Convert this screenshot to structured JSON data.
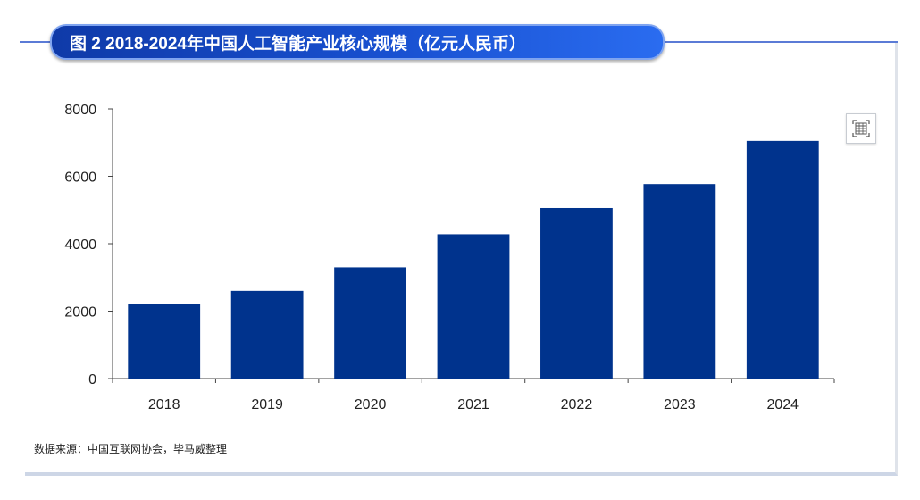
{
  "header": {
    "title": "图 2 2018-2024年中国人工智能产业核心规模（亿元人民币）"
  },
  "source_note": "数据来源：中国互联网协会，毕马威整理",
  "toolbar": {
    "icon": "table-icon"
  },
  "colors": {
    "bar": "#00338d",
    "banner": "#1a4fd0",
    "axis": "#444444"
  },
  "chart_data": {
    "type": "bar",
    "title": "2018-2024年中国人工智能产业核心规模（亿元人民币）",
    "categories": [
      "2018",
      "2019",
      "2020",
      "2021",
      "2022",
      "2023",
      "2024"
    ],
    "values": [
      2200,
      2600,
      3300,
      4280,
      5060,
      5770,
      7050
    ],
    "ylim": [
      0,
      8000
    ],
    "yticks": [
      0,
      2000,
      4000,
      6000,
      8000
    ],
    "grid": false,
    "legend": "none"
  }
}
